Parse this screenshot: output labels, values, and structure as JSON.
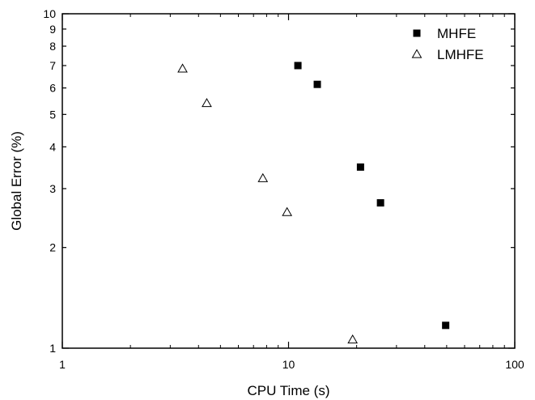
{
  "chart_data": {
    "type": "scatter",
    "xlabel": "CPU Time (s)",
    "ylabel": "Global Error (%)",
    "x_scale": "log",
    "y_scale": "log",
    "xlim": [
      1,
      100
    ],
    "ylim": [
      1,
      10
    ],
    "x_tick_labels": [
      "1",
      "10",
      "100"
    ],
    "y_tick_labels": [
      "1",
      "2",
      "3",
      "4",
      "5",
      "6",
      "7",
      "8",
      "9",
      "10"
    ],
    "legend_position": "top-right",
    "grid": false,
    "series": [
      {
        "name": "MHFE",
        "marker": "filled-square",
        "color": "#000000",
        "x": [
          11.0,
          13.4,
          20.8,
          25.5,
          49.5
        ],
        "y": [
          7.0,
          6.15,
          3.48,
          2.72,
          1.17
        ]
      },
      {
        "name": "LMHFE",
        "marker": "open-triangle",
        "color": "#000000",
        "x": [
          3.4,
          4.35,
          7.7,
          9.85,
          19.2
        ],
        "y": [
          6.85,
          5.4,
          3.22,
          2.55,
          1.06
        ]
      }
    ]
  }
}
